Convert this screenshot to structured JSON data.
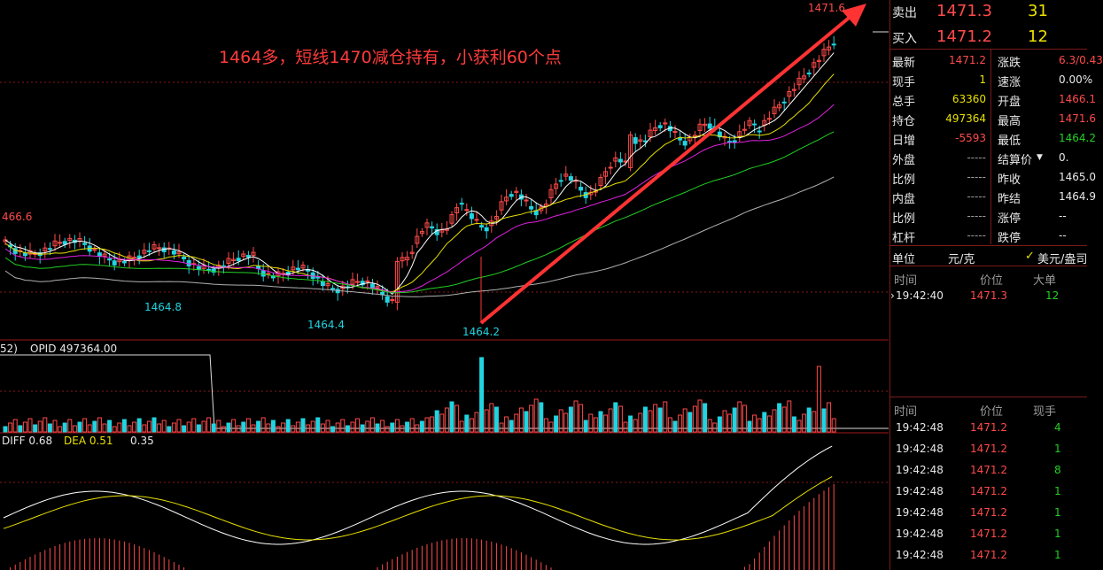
{
  "annotation": "1464多，短线1470减仓持有，小获利60个点",
  "price_labels": {
    "left_high": "466.6",
    "low1": "1464.8",
    "low2": "1464.4",
    "low3": "1464.2",
    "top_high": "1471.6"
  },
  "volume_panel": {
    "label_prefix": "52)",
    "opid": "OPID 497364.00"
  },
  "macd_panel": {
    "diff": "DIFF 0.68",
    "dea": "DEA 0.51",
    "macd": "0.35"
  },
  "quote": {
    "sell_label": "卖出",
    "sell_price": "1471.3",
    "sell_qty": "31",
    "buy_label": "买入",
    "buy_price": "1471.2",
    "buy_qty": "12"
  },
  "stats": [
    {
      "l1": "最新",
      "v1": "1471.2",
      "l2": "涨跌",
      "v2": "6.3/0.43"
    },
    {
      "l1": "现手",
      "v1": "1",
      "l2": "速涨",
      "v2": "0.00%"
    },
    {
      "l1": "总手",
      "v1": "63360",
      "l2": "开盘",
      "v2": "1466.1"
    },
    {
      "l1": "持仓",
      "v1": "497364",
      "l2": "最高",
      "v2": "1471.6"
    },
    {
      "l1": "日增",
      "v1": "-5593",
      "l2": "最低",
      "v2": "1464.2"
    },
    {
      "l1": "外盘",
      "v1": "-----",
      "l2": "结算价",
      "v2": "0."
    },
    {
      "l1": "比例",
      "v1": "-----",
      "l2": "昨收",
      "v2": "1465.0"
    },
    {
      "l1": "内盘",
      "v1": "-----",
      "l2": "昨结",
      "v2": "1464.9"
    },
    {
      "l1": "比例",
      "v1": "-----",
      "l2": "涨停",
      "v2": "--"
    },
    {
      "l1": "杠杆",
      "v1": "-----",
      "l2": "跌停",
      "v2": "--"
    }
  ],
  "unit": {
    "label": "单位",
    "value": "元/克",
    "alt": "美元/盎司"
  },
  "big_orders": {
    "headers": [
      "时间",
      "价位",
      "大单"
    ],
    "rows": [
      {
        "time": "19:42:40",
        "price": "1471.3",
        "qty": "12"
      }
    ]
  },
  "ticks": {
    "headers": [
      "时间",
      "价位",
      "现手"
    ],
    "rows": [
      {
        "time": "19:42:48",
        "price": "1471.2",
        "qty": "4"
      },
      {
        "time": "19:42:48",
        "price": "1471.2",
        "qty": "1"
      },
      {
        "time": "19:42:48",
        "price": "1471.2",
        "qty": "8"
      },
      {
        "time": "19:42:48",
        "price": "1471.2",
        "qty": "1"
      },
      {
        "time": "19:42:48",
        "price": "1471.2",
        "qty": "1"
      },
      {
        "time": "19:42:48",
        "price": "1471.2",
        "qty": "1"
      },
      {
        "time": "19:42:48",
        "price": "1471.2",
        "qty": "1"
      }
    ]
  },
  "colors": {
    "up": "#ff4a4a",
    "down": "#21d4e0",
    "arrow": "#ff3333"
  }
}
